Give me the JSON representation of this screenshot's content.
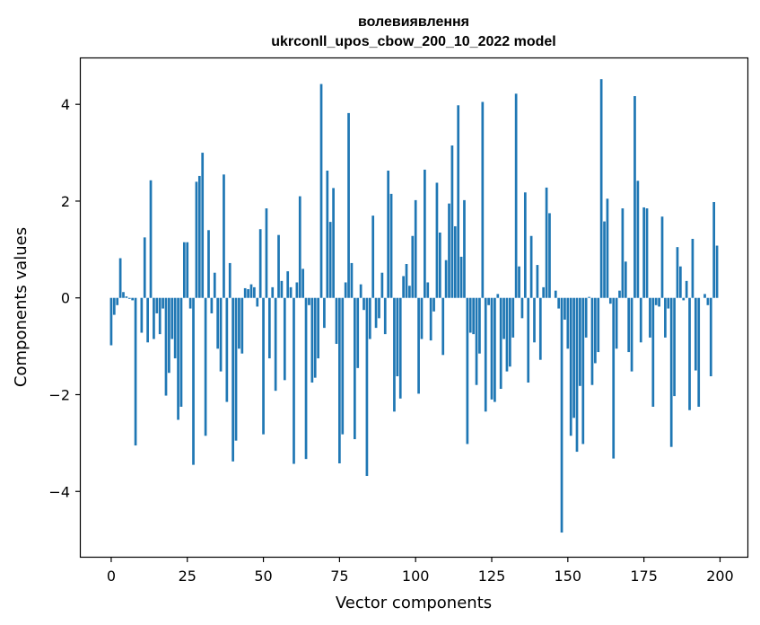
{
  "chart_data": {
    "type": "bar",
    "title_line1": "волевиявлення",
    "title_line2": "ukrconll_upos_cbow_200_10_2022 model",
    "xlabel": "Vector components",
    "ylabel": "Components values",
    "xlim": [
      -10,
      209
    ],
    "ylim": [
      -5.35,
      4.95
    ],
    "xticks": [
      0,
      25,
      50,
      75,
      100,
      125,
      150,
      175,
      200
    ],
    "yticks": [
      -4,
      -2,
      0,
      2,
      4
    ],
    "ytick_labels": [
      "−4",
      "−2",
      "0",
      "2",
      "4"
    ],
    "bar_color": "#1f77b4",
    "values": [
      -0.98,
      -0.35,
      -0.15,
      0.82,
      0.12,
      0.03,
      -0.02,
      -0.05,
      -3.05,
      0.0,
      -0.72,
      1.25,
      -0.92,
      2.43,
      -0.85,
      -0.32,
      -0.75,
      -0.22,
      -2.02,
      -1.55,
      -0.85,
      -1.25,
      -2.52,
      -2.25,
      1.15,
      1.15,
      -0.22,
      -3.45,
      2.4,
      2.52,
      3.0,
      -2.85,
      1.4,
      -0.32,
      0.52,
      -1.05,
      -1.52,
      2.55,
      -2.15,
      0.72,
      -3.38,
      -2.95,
      -1.05,
      -1.15,
      0.2,
      0.18,
      0.28,
      0.22,
      -0.18,
      1.42,
      -2.82,
      1.85,
      -1.25,
      0.22,
      -1.92,
      1.3,
      0.35,
      -1.7,
      0.55,
      0.22,
      -3.43,
      0.32,
      2.1,
      0.6,
      -3.33,
      -0.15,
      -1.75,
      -1.65,
      -1.25,
      4.42,
      -0.62,
      2.63,
      1.57,
      2.27,
      -0.95,
      -3.42,
      -2.82,
      0.32,
      3.82,
      0.72,
      -2.92,
      -1.45,
      0.28,
      -0.25,
      -3.68,
      -0.85,
      1.7,
      -0.62,
      -0.42,
      0.52,
      -0.75,
      2.63,
      2.15,
      -2.35,
      -1.62,
      -2.08,
      0.45,
      0.7,
      0.25,
      1.28,
      2.02,
      -1.98,
      -0.85,
      2.65,
      0.32,
      -0.88,
      -0.28,
      2.38,
      1.35,
      -1.18,
      0.78,
      1.95,
      3.15,
      1.48,
      3.98,
      0.85,
      2.02,
      -3.02,
      -0.72,
      -0.75,
      -1.8,
      -1.15,
      4.05,
      -2.35,
      -0.15,
      -2.1,
      -2.15,
      0.08,
      -1.88,
      -0.85,
      -1.52,
      -1.42,
      -0.82,
      4.22,
      0.65,
      -0.42,
      2.18,
      -1.75,
      1.28,
      -0.92,
      0.68,
      -1.28,
      0.22,
      2.28,
      1.75,
      0.0,
      0.15,
      -0.22,
      -4.85,
      -0.45,
      -1.05,
      -2.85,
      -2.48,
      -3.18,
      -1.82,
      -3.02,
      -0.82,
      0.02,
      -1.8,
      -1.35,
      -1.12,
      4.52,
      1.58,
      2.05,
      -0.12,
      -3.32,
      -1.05,
      0.15,
      1.85,
      0.75,
      -1.12,
      -1.52,
      4.17,
      2.42,
      -0.92,
      1.87,
      1.85,
      -0.82,
      -2.25,
      -0.15,
      -0.18,
      1.68,
      -0.82,
      -0.22,
      -3.08,
      -2.03,
      1.05,
      0.65,
      -0.05,
      0.35,
      -2.32,
      1.22,
      -1.5,
      -2.25,
      0.0,
      0.08,
      -0.15,
      -1.62,
      1.98,
      1.08
    ]
  }
}
